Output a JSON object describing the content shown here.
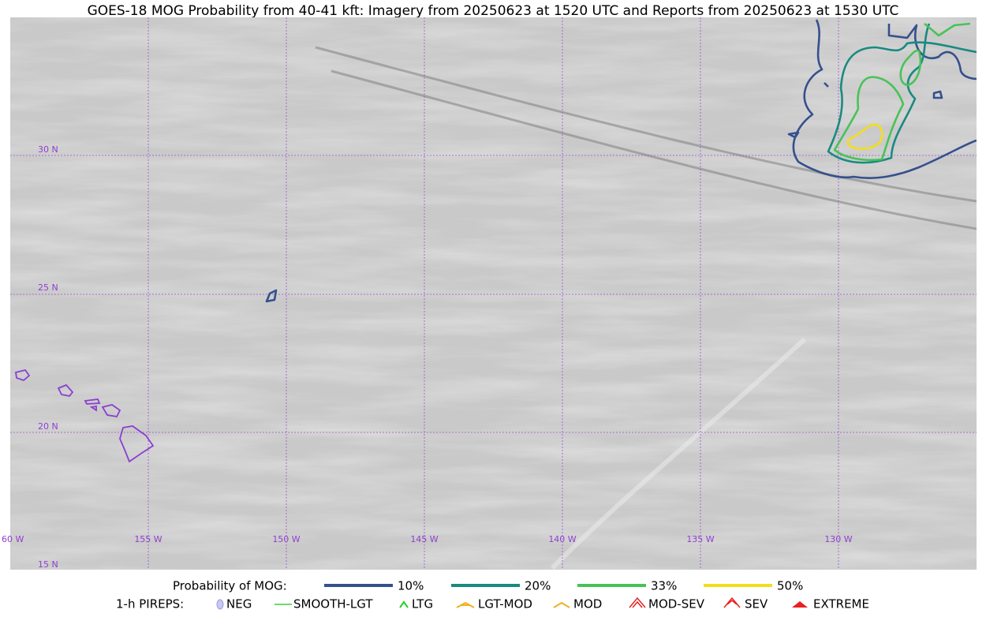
{
  "title": "GOES-18 MOG Probability from 40-41 kft: Imagery from 20250623 at 1520 UTC and Reports from 20250623 at 1530 UTC",
  "map": {
    "lat_labels": [
      "30 N",
      "25 N",
      "20 N",
      "15 N"
    ],
    "lon_labels": [
      "60 W",
      "155 W",
      "150 W",
      "145 W",
      "140 W",
      "135 W",
      "130 W"
    ]
  },
  "legend": {
    "probability_title": "Probability of MOG:",
    "probability_levels": [
      "10%",
      "20%",
      "33%",
      "50%"
    ],
    "pireps_title": "1-h PIREPS:",
    "pireps": [
      "NEG",
      "SMOOTH-LGT",
      "LTG",
      "LGT-MOD",
      "MOD",
      "MOD-SEV",
      "SEV",
      "EXTREME"
    ]
  }
}
